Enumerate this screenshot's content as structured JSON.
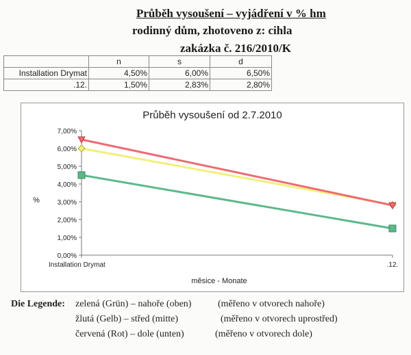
{
  "header": {
    "title": "Průběh vysoušení – vyjádření v % hm",
    "line2": "rodinný dům, zhotoveno z: cihla",
    "line3": "zakázka č. 216/2010/K"
  },
  "table": {
    "columns": [
      "",
      "n",
      "s",
      "d"
    ],
    "rows": [
      [
        "Installation Drymat",
        "4,50%",
        "6,00%",
        "6,50%"
      ],
      [
        ".12.",
        "1,50%",
        "2,83%",
        "2,80%"
      ]
    ]
  },
  "chart_data": {
    "type": "line",
    "title": "Průběh vysoušení od 2.7.2010",
    "xlabel": "měsice - Monate",
    "ylabel": "%",
    "categories": [
      "Installation Drymat",
      ".12."
    ],
    "ylim": [
      0,
      7
    ],
    "yticks": [
      "0,00%",
      "1,00%",
      "2,00%",
      "3,00%",
      "4,00%",
      "5,00%",
      "6,00%",
      "7,00%"
    ],
    "series": [
      {
        "name": "n",
        "color": "#5cb88a",
        "marker": "square",
        "values": [
          4.5,
          1.5
        ]
      },
      {
        "name": "s",
        "color": "#f2f07a",
        "marker": "diamond",
        "values": [
          6.0,
          2.83
        ]
      },
      {
        "name": "d",
        "color": "#ee6a72",
        "marker": "triangle",
        "values": [
          6.5,
          2.8
        ]
      }
    ]
  },
  "legend": {
    "label": "Die Legende:",
    "lines": [
      {
        "color": "zelená (Grün) – nahoře (oben)",
        "note": "(měřeno v otvorech nahoře)"
      },
      {
        "color": "žlutá (Gelb) – střed (mitte)",
        "note": "(měřeno v otvorech uprostřed)"
      },
      {
        "color": "červená (Rot) – dole (unten)",
        "note": "(měřeno v otvorech dole)"
      }
    ]
  }
}
